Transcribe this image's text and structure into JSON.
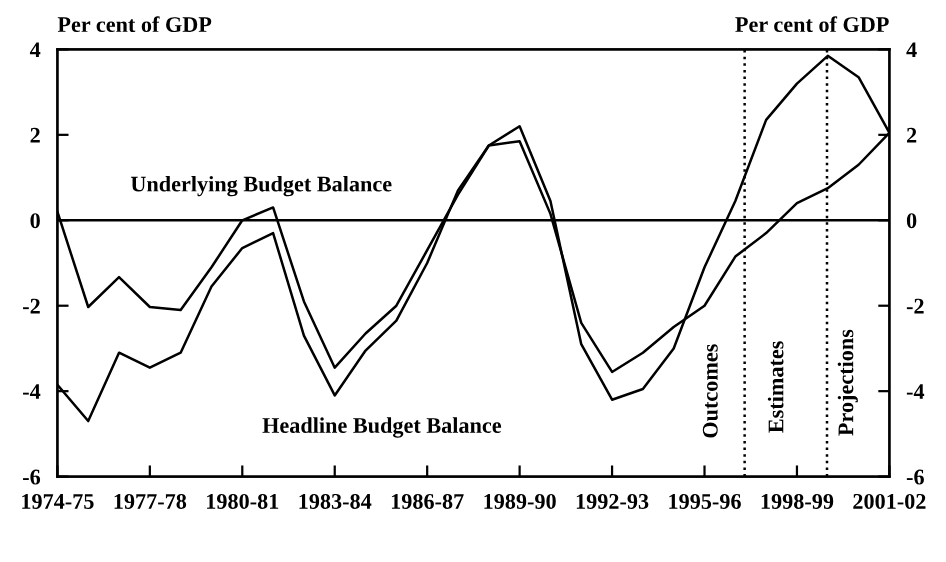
{
  "chart_data": {
    "type": "line",
    "ylabel": "Per cent of GDP",
    "y2label": "Per cent of GDP",
    "categories": [
      "1974-75",
      null,
      null,
      "1977-78",
      null,
      null,
      "1980-81",
      null,
      null,
      "1983-84",
      null,
      null,
      "1986-87",
      null,
      null,
      "1989-90",
      null,
      null,
      "1992-93",
      null,
      null,
      "1995-96",
      null,
      null,
      "1998-99",
      null,
      null,
      "2001-02"
    ],
    "series": [
      {
        "name": "Underlying Budget Balance",
        "color": "#000000",
        "values": [
          0.2,
          -2.03,
          -1.33,
          -2.03,
          -2.1,
          -1.1,
          0.0,
          0.3,
          -1.9,
          -3.45,
          -2.65,
          -2.0,
          -0.7,
          0.6,
          1.75,
          1.85,
          0.15,
          -2.4,
          -3.55,
          -3.1,
          -2.5,
          -2.0,
          -0.85,
          -0.3,
          0.4,
          0.75,
          1.3,
          2.05
        ]
      },
      {
        "name": "Headline Budget Balance",
        "color": "#000000",
        "values": [
          -3.85,
          -4.7,
          -3.1,
          -3.45,
          -3.1,
          -1.55,
          -0.65,
          -0.3,
          -2.7,
          -4.1,
          -3.05,
          -2.35,
          -1.0,
          0.7,
          1.75,
          2.2,
          0.45,
          -2.9,
          -4.2,
          -3.95,
          -3.0,
          -1.1,
          0.45,
          2.35,
          3.2,
          3.85,
          3.35,
          2.05
        ]
      }
    ],
    "ylim": [
      -6,
      4
    ],
    "yticks": [
      -6,
      -4,
      -2,
      0,
      2,
      4
    ],
    "y2lim": [
      -6,
      4
    ],
    "y2ticks": [
      -6,
      -4,
      -2,
      0,
      2,
      4
    ],
    "ref_lines": [
      {
        "axis": "y",
        "value": 0,
        "line_style": "solid"
      }
    ],
    "annotations": [
      "Outcomes",
      "Estimates",
      "Projections"
    ],
    "grid": false,
    "marker": "none",
    "line_style": "solid"
  }
}
